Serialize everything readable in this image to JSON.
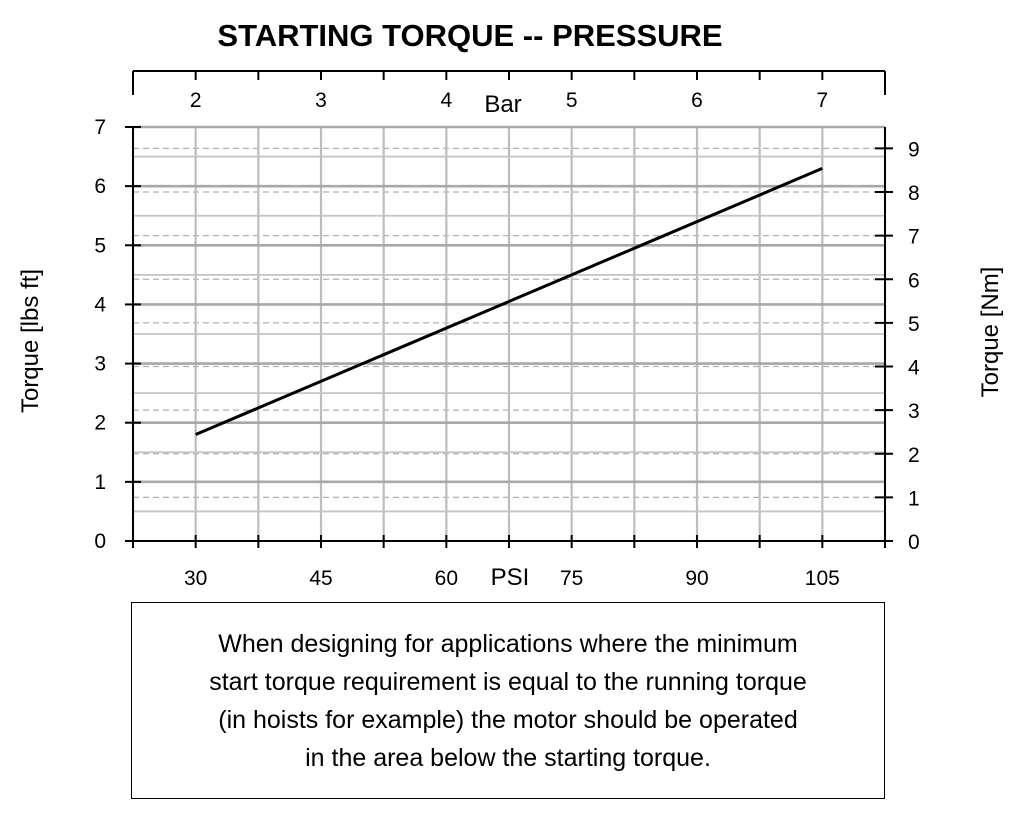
{
  "chart_data": {
    "type": "line",
    "title": "STARTING TORQUE -- PRESSURE",
    "x_bottom": {
      "label": "PSI",
      "ticks": [
        30,
        45,
        60,
        75,
        90,
        105
      ],
      "range": [
        22.5,
        112.5
      ]
    },
    "x_top": {
      "label": "Bar",
      "ticks": [
        2,
        3,
        4,
        5,
        6,
        7
      ]
    },
    "y_left": {
      "label": "Torque [lbs ft]",
      "ticks": [
        0,
        1,
        2,
        3,
        4,
        5,
        6,
        7
      ],
      "range": [
        0,
        7
      ]
    },
    "y_right": {
      "label": "Torque [Nm]",
      "ticks": [
        0,
        1,
        2,
        3,
        4,
        5,
        6,
        7,
        8,
        9
      ]
    },
    "grid": true,
    "series": [
      {
        "x": [
          30,
          105
        ],
        "y": [
          1.8,
          6.3
        ],
        "color": "#000000"
      }
    ]
  },
  "note": {
    "lines": [
      "When designing for applications where the minimum",
      "start torque requirement is equal to the running torque",
      "(in hoists for example) the motor should be operated",
      "in the area below the starting torque."
    ]
  }
}
